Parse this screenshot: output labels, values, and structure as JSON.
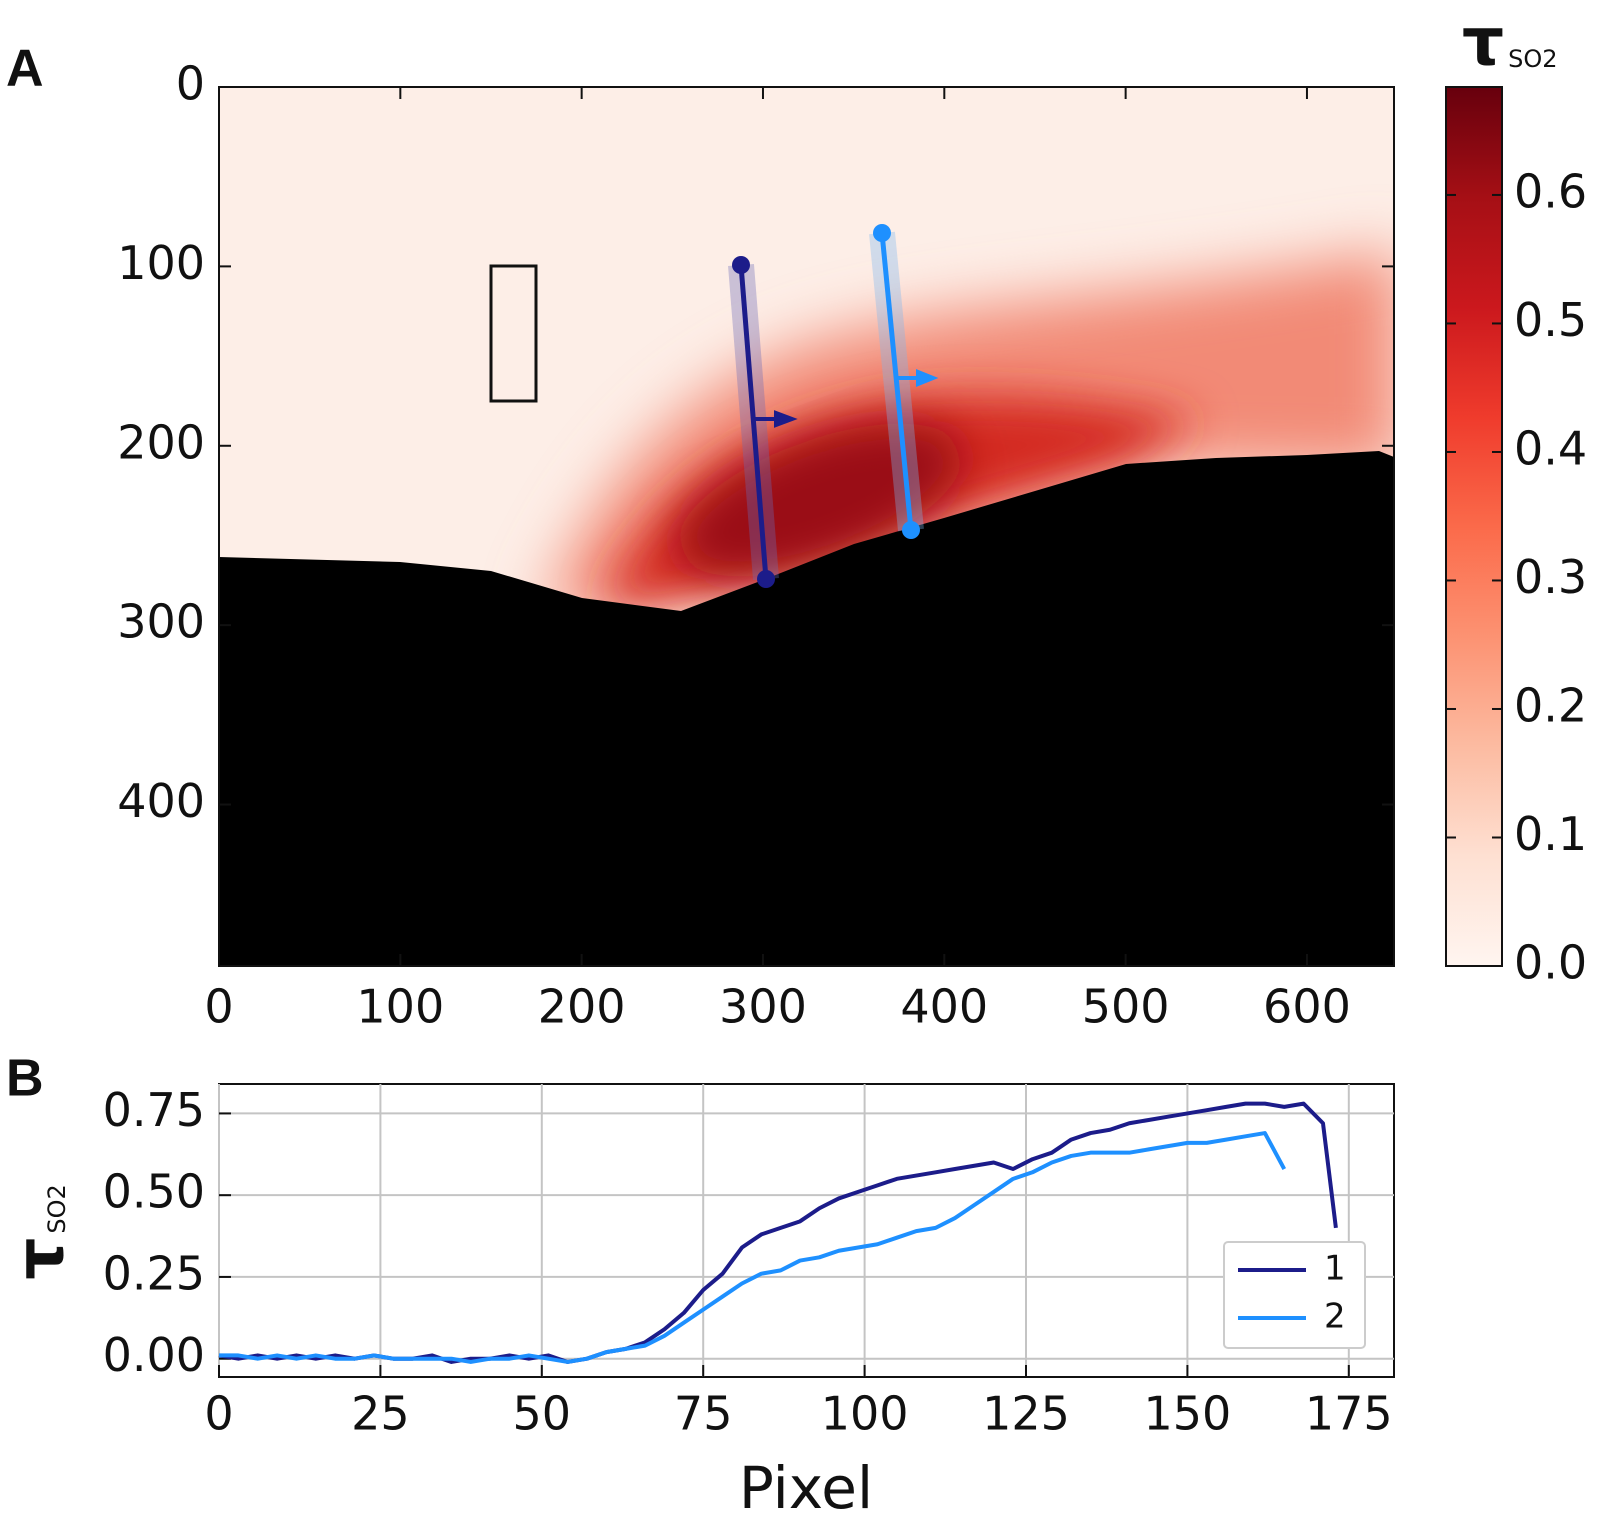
{
  "chart_data": [
    {
      "type": "image",
      "label": "A",
      "xlim": [
        0,
        648
      ],
      "ylim": [
        0,
        490
      ],
      "y_inverted": true,
      "xticks": [
        0,
        100,
        200,
        300,
        400,
        500,
        600
      ],
      "yticks": [
        0,
        100,
        200,
        300,
        400
      ],
      "colorbar": {
        "label": "τ",
        "label_sub": "SO2",
        "clim": [
          0,
          0.684
        ],
        "ticks": [
          {
            "value": 0,
            "label": "0.0"
          },
          0.1,
          0.2,
          0.3,
          0.4,
          0.5,
          0.6
        ]
      }
    },
    {
      "type": "line",
      "label": "B",
      "xlabel": "Pixel",
      "ylabel": "τ",
      "ylabel_sub": "SO2",
      "x": [
        0,
        3,
        6,
        9,
        12,
        15,
        18,
        21,
        24,
        27,
        30,
        33,
        36,
        39,
        42,
        45,
        48,
        51,
        54,
        57,
        60,
        63,
        66,
        69,
        72,
        75,
        78,
        81,
        84,
        87,
        90,
        93,
        96,
        99,
        102,
        105,
        108,
        111,
        114,
        117,
        120,
        123,
        126,
        129,
        132,
        135,
        138,
        141,
        144,
        147,
        150,
        153,
        156,
        159,
        162,
        165,
        168,
        171,
        173
      ],
      "series": [
        {
          "name": "1",
          "color": "#1c1c8a",
          "values": [
            0.01,
            0.0,
            0.01,
            0.0,
            0.01,
            0.0,
            0.01,
            0.0,
            0.01,
            0.0,
            0.0,
            0.01,
            -0.01,
            0.0,
            0.0,
            0.01,
            0.0,
            0.01,
            -0.01,
            0.0,
            0.02,
            0.03,
            0.05,
            0.09,
            0.14,
            0.21,
            0.26,
            0.34,
            0.38,
            0.4,
            0.42,
            0.46,
            0.49,
            0.51,
            0.53,
            0.55,
            0.56,
            0.57,
            0.58,
            0.59,
            0.6,
            0.58,
            0.61,
            0.63,
            0.67,
            0.69,
            0.7,
            0.72,
            0.73,
            0.74,
            0.75,
            0.76,
            0.77,
            0.78,
            0.78,
            0.77,
            0.78,
            0.72,
            0.4
          ]
        },
        {
          "name": "2",
          "color": "#1e90ff",
          "values": [
            0.01,
            0.01,
            0.0,
            0.01,
            0.0,
            0.01,
            0.0,
            0.0,
            0.01,
            0.0,
            0.0,
            0.0,
            0.0,
            -0.01,
            0.0,
            0.0,
            0.01,
            0.0,
            -0.01,
            0.0,
            0.02,
            0.03,
            0.04,
            0.07,
            0.11,
            0.15,
            0.19,
            0.23,
            0.26,
            0.27,
            0.3,
            0.31,
            0.33,
            0.34,
            0.35,
            0.37,
            0.39,
            0.4,
            0.43,
            0.47,
            0.51,
            0.55,
            0.57,
            0.6,
            0.62,
            0.63,
            0.63,
            0.63,
            0.64,
            0.65,
            0.66,
            0.66,
            0.67,
            0.68,
            0.69,
            0.58,
            null,
            null,
            null
          ]
        }
      ],
      "xlim": [
        0,
        182
      ],
      "ylim": [
        -0.056,
        0.84
      ],
      "xticks": [
        0,
        25,
        50,
        75,
        100,
        125,
        150,
        175
      ],
      "yticks": [
        {
          "value": 0,
          "label": "0.00"
        },
        {
          "value": 0.25,
          "label": "0.25"
        },
        {
          "value": 0.5,
          "label": "0.50"
        },
        {
          "value": 0.75,
          "label": "0.75"
        }
      ],
      "grid": true,
      "legend": "lower right"
    }
  ]
}
